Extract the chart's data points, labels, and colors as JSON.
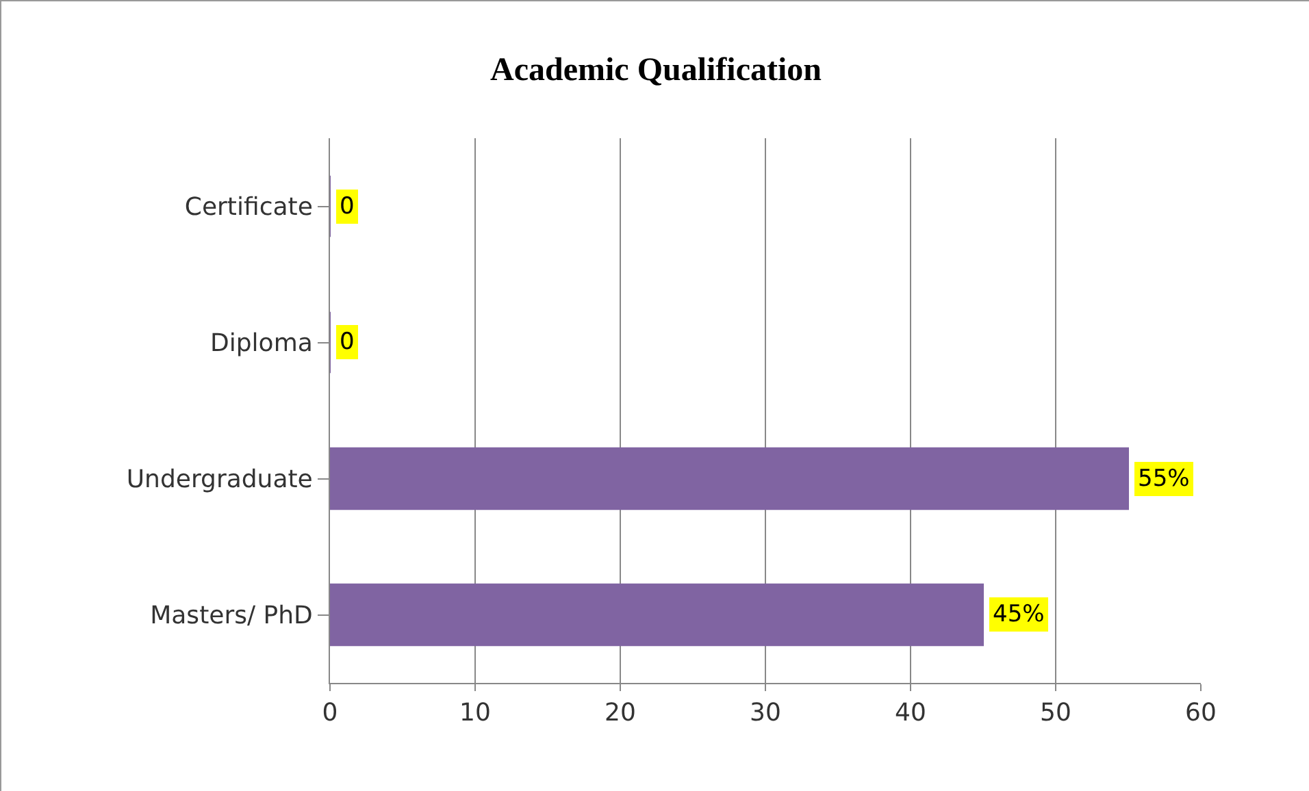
{
  "chart_data": {
    "type": "bar",
    "orientation": "horizontal",
    "title": "Academic Qualification",
    "categories": [
      "Certificate",
      "Diploma",
      "Undergraduate",
      "Masters/ PhD"
    ],
    "values": [
      0,
      0,
      55,
      45
    ],
    "value_labels": [
      "0",
      "0",
      "55%",
      "45%"
    ],
    "color": "#8064a2",
    "xlim": [
      0,
      60
    ],
    "xticks": [
      0,
      10,
      20,
      30,
      40,
      50,
      60
    ],
    "grid": "x",
    "legend": false
  }
}
